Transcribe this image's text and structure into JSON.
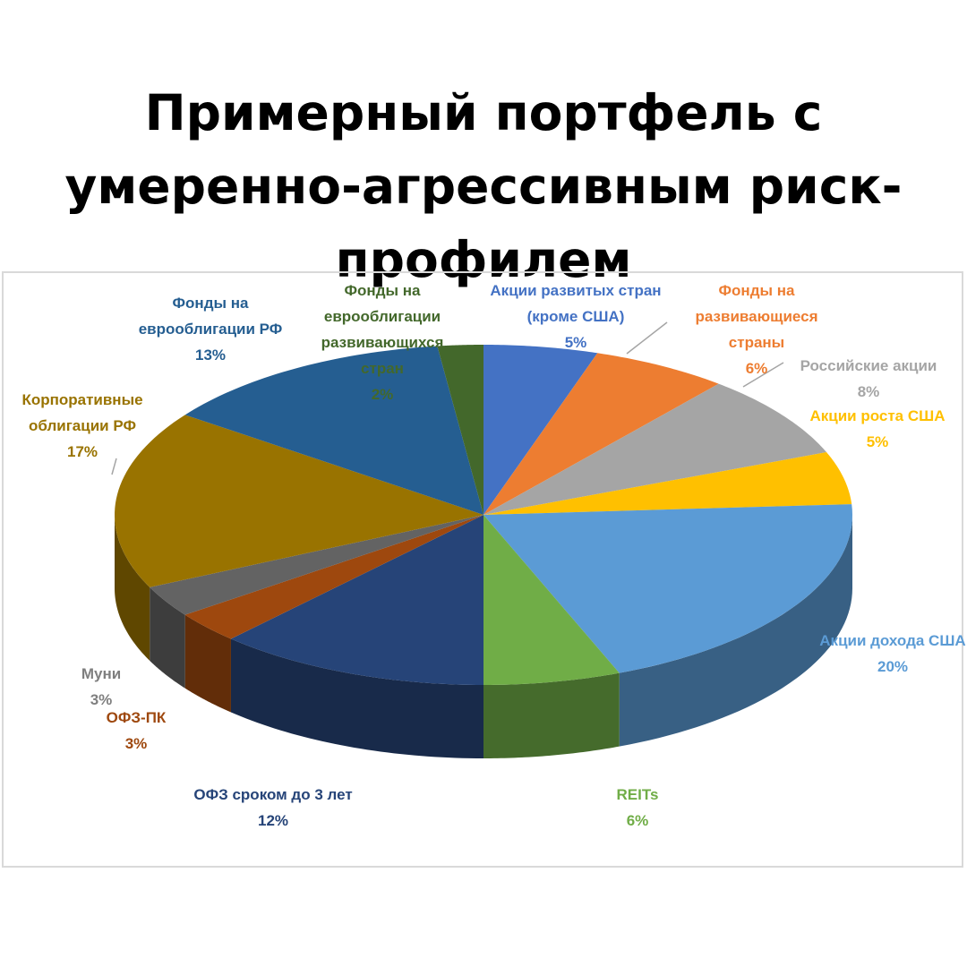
{
  "chart_data": {
    "type": "pie",
    "title": "Примерный портфель с умеренно-агрессивным риск-профилем",
    "categories": [
      "Акции развитых стран (кроме США)",
      "Фонды на развивающиеся страны",
      "Российские акции",
      "Акции роста США",
      "Акции дохода США",
      "REITs",
      "ОФЗ сроком до 3 лет",
      "ОФЗ-ПК",
      "Муни",
      "Корпоративные облигации РФ",
      "Фонды на еврооблигации РФ",
      "Фонды на еврооблигации развивающихся стран"
    ],
    "values": [
      5,
      6,
      8,
      5,
      20,
      6,
      12,
      3,
      3,
      17,
      13,
      2
    ],
    "value_labels": [
      "5%",
      "6%",
      "8%",
      "5%",
      "20%",
      "6%",
      "12%",
      "3%",
      "3%",
      "17%",
      "13%",
      "2%"
    ],
    "colors": [
      "#4472c4",
      "#ed7d31",
      "#a5a5a5",
      "#ffc000",
      "#5b9bd5",
      "#70ad47",
      "#264478",
      "#9e480e",
      "#636363",
      "#997300",
      "#255e91",
      "#43682b"
    ]
  }
}
